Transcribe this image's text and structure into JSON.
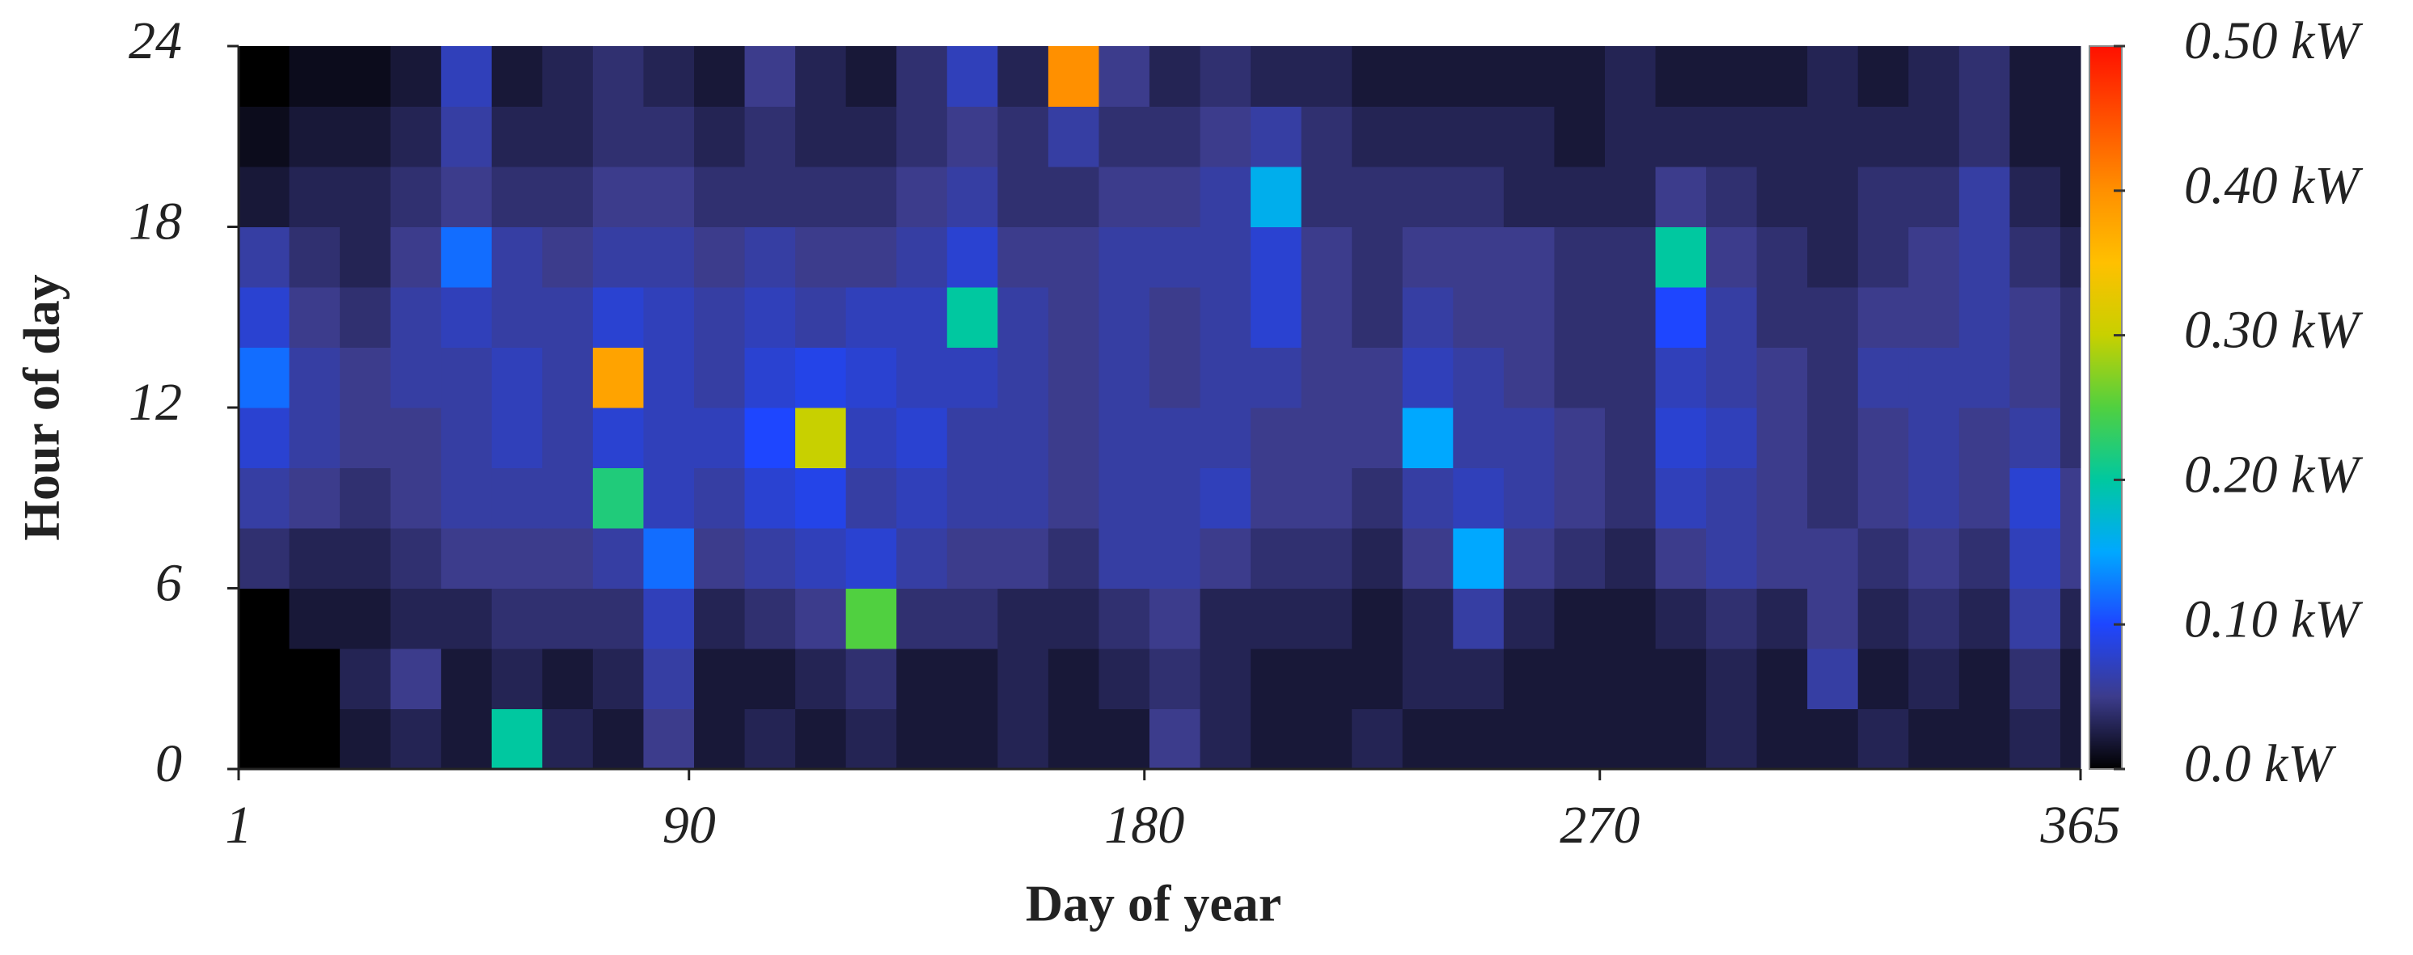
{
  "chart_data": {
    "type": "heatmap",
    "xlabel": "Day of year",
    "ylabel": "Hour of day",
    "xlim": [
      1,
      365
    ],
    "xticks": [
      1,
      90,
      180,
      270,
      365
    ],
    "ylim": [
      0,
      24
    ],
    "yticks": [
      0,
      6,
      12,
      18,
      24
    ],
    "xbins": [
      1,
      11,
      21,
      31,
      41,
      51,
      61,
      71,
      81,
      91,
      101,
      111,
      121,
      131,
      141,
      151,
      161,
      171,
      181,
      191,
      201,
      211,
      221,
      231,
      241,
      251,
      261,
      271,
      281,
      291,
      301,
      311,
      321,
      331,
      341,
      351,
      361,
      365
    ],
    "ybins": [
      0,
      2,
      4,
      6,
      8,
      10,
      12,
      14,
      16,
      18,
      20,
      22,
      24
    ],
    "values": [
      [
        0,
        0,
        0.02,
        0.03,
        0.02,
        0.2,
        0.03,
        0.02,
        0.05,
        0.02,
        0.03,
        0.02,
        0.03,
        0.02,
        0.02,
        0.03,
        0.02,
        0.02,
        0.05,
        0.03,
        0.02,
        0.02,
        0.03,
        0.02,
        0.02,
        0.02,
        0.02,
        0.02,
        0.02,
        0.03,
        0.02,
        0.02,
        0.03,
        0.02,
        0.02,
        0.03,
        0.02
      ],
      [
        0,
        0,
        0.03,
        0.05,
        0.02,
        0.03,
        0.02,
        0.03,
        0.06,
        0.02,
        0.02,
        0.03,
        0.04,
        0.02,
        0.02,
        0.03,
        0.02,
        0.03,
        0.04,
        0.03,
        0.02,
        0.02,
        0.02,
        0.03,
        0.03,
        0.02,
        0.02,
        0.02,
        0.02,
        0.03,
        0.02,
        0.06,
        0.02,
        0.03,
        0.02,
        0.04,
        0.02
      ],
      [
        0,
        0.02,
        0.02,
        0.03,
        0.03,
        0.04,
        0.04,
        0.04,
        0.07,
        0.03,
        0.04,
        0.05,
        0.25,
        0.04,
        0.04,
        0.03,
        0.03,
        0.04,
        0.05,
        0.03,
        0.03,
        0.03,
        0.02,
        0.03,
        0.06,
        0.03,
        0.02,
        0.02,
        0.03,
        0.04,
        0.03,
        0.05,
        0.03,
        0.04,
        0.03,
        0.06,
        0.03
      ],
      [
        0.04,
        0.03,
        0.03,
        0.04,
        0.05,
        0.05,
        0.05,
        0.06,
        0.12,
        0.05,
        0.06,
        0.07,
        0.08,
        0.06,
        0.05,
        0.05,
        0.04,
        0.06,
        0.06,
        0.05,
        0.04,
        0.04,
        0.03,
        0.05,
        0.15,
        0.05,
        0.04,
        0.03,
        0.05,
        0.06,
        0.05,
        0.05,
        0.04,
        0.05,
        0.04,
        0.07,
        0.05
      ],
      [
        0.06,
        0.05,
        0.04,
        0.05,
        0.06,
        0.06,
        0.06,
        0.22,
        0.07,
        0.06,
        0.08,
        0.09,
        0.06,
        0.07,
        0.06,
        0.06,
        0.05,
        0.06,
        0.06,
        0.07,
        0.05,
        0.05,
        0.04,
        0.06,
        0.07,
        0.06,
        0.05,
        0.04,
        0.07,
        0.06,
        0.05,
        0.04,
        0.05,
        0.06,
        0.05,
        0.08,
        0.05
      ],
      [
        0.08,
        0.06,
        0.05,
        0.05,
        0.06,
        0.07,
        0.06,
        0.08,
        0.07,
        0.07,
        0.1,
        0.3,
        0.07,
        0.08,
        0.06,
        0.06,
        0.05,
        0.06,
        0.06,
        0.06,
        0.05,
        0.05,
        0.05,
        0.15,
        0.06,
        0.06,
        0.05,
        0.04,
        0.08,
        0.07,
        0.05,
        0.04,
        0.05,
        0.06,
        0.05,
        0.06,
        0.04
      ],
      [
        0.12,
        0.06,
        0.05,
        0.06,
        0.06,
        0.07,
        0.06,
        0.38,
        0.07,
        0.06,
        0.08,
        0.09,
        0.08,
        0.07,
        0.07,
        0.06,
        0.05,
        0.06,
        0.05,
        0.06,
        0.06,
        0.05,
        0.05,
        0.07,
        0.06,
        0.05,
        0.04,
        0.04,
        0.07,
        0.06,
        0.05,
        0.04,
        0.06,
        0.06,
        0.06,
        0.05,
        0.04
      ],
      [
        0.08,
        0.05,
        0.04,
        0.06,
        0.07,
        0.06,
        0.06,
        0.08,
        0.07,
        0.06,
        0.07,
        0.06,
        0.07,
        0.07,
        0.2,
        0.06,
        0.05,
        0.06,
        0.05,
        0.06,
        0.08,
        0.05,
        0.04,
        0.06,
        0.05,
        0.05,
        0.04,
        0.04,
        0.1,
        0.06,
        0.04,
        0.04,
        0.05,
        0.05,
        0.06,
        0.05,
        0.04
      ],
      [
        0.06,
        0.04,
        0.03,
        0.05,
        0.12,
        0.06,
        0.05,
        0.06,
        0.06,
        0.05,
        0.06,
        0.05,
        0.05,
        0.06,
        0.08,
        0.05,
        0.05,
        0.06,
        0.06,
        0.06,
        0.08,
        0.05,
        0.04,
        0.05,
        0.05,
        0.05,
        0.04,
        0.04,
        0.2,
        0.05,
        0.04,
        0.03,
        0.04,
        0.05,
        0.06,
        0.04,
        0.03
      ],
      [
        0.02,
        0.03,
        0.03,
        0.04,
        0.05,
        0.04,
        0.04,
        0.05,
        0.05,
        0.04,
        0.04,
        0.04,
        0.04,
        0.05,
        0.06,
        0.04,
        0.04,
        0.05,
        0.05,
        0.06,
        0.16,
        0.04,
        0.04,
        0.04,
        0.04,
        0.03,
        0.03,
        0.03,
        0.05,
        0.04,
        0.03,
        0.03,
        0.04,
        0.04,
        0.06,
        0.03,
        0.02
      ],
      [
        0.01,
        0.02,
        0.02,
        0.03,
        0.06,
        0.03,
        0.03,
        0.04,
        0.04,
        0.03,
        0.04,
        0.03,
        0.03,
        0.04,
        0.05,
        0.04,
        0.06,
        0.04,
        0.04,
        0.05,
        0.06,
        0.04,
        0.03,
        0.03,
        0.03,
        0.03,
        0.02,
        0.03,
        0.03,
        0.03,
        0.03,
        0.03,
        0.03,
        0.03,
        0.04,
        0.02,
        0.02
      ],
      [
        0,
        0.01,
        0.01,
        0.02,
        0.07,
        0.02,
        0.03,
        0.04,
        0.03,
        0.02,
        0.05,
        0.03,
        0.02,
        0.04,
        0.07,
        0.03,
        0.4,
        0.05,
        0.03,
        0.04,
        0.03,
        0.03,
        0.02,
        0.02,
        0.02,
        0.02,
        0.02,
        0.03,
        0.02,
        0.02,
        0.02,
        0.03,
        0.02,
        0.03,
        0.04,
        0.02,
        0.02
      ]
    ],
    "colorbar": {
      "clim": [
        0,
        0.5
      ],
      "ticks": [
        {
          "value": 0,
          "label": "0.0 kW"
        },
        {
          "value": 0.1,
          "label": "0.10 kW"
        },
        {
          "value": 0.2,
          "label": "0.20 kW"
        },
        {
          "value": 0.3,
          "label": "0.30 kW"
        },
        {
          "value": 0.4,
          "label": "0.40 kW"
        },
        {
          "value": 0.5,
          "label": "0.50 kW"
        }
      ],
      "colorscale": [
        "#000000",
        "#3c3c8c",
        "#1e46ff",
        "#00a8ff",
        "#00c8a0",
        "#50d040",
        "#c8d000",
        "#ffc000",
        "#ff9000",
        "#ff5000",
        "#ff1000"
      ]
    }
  }
}
